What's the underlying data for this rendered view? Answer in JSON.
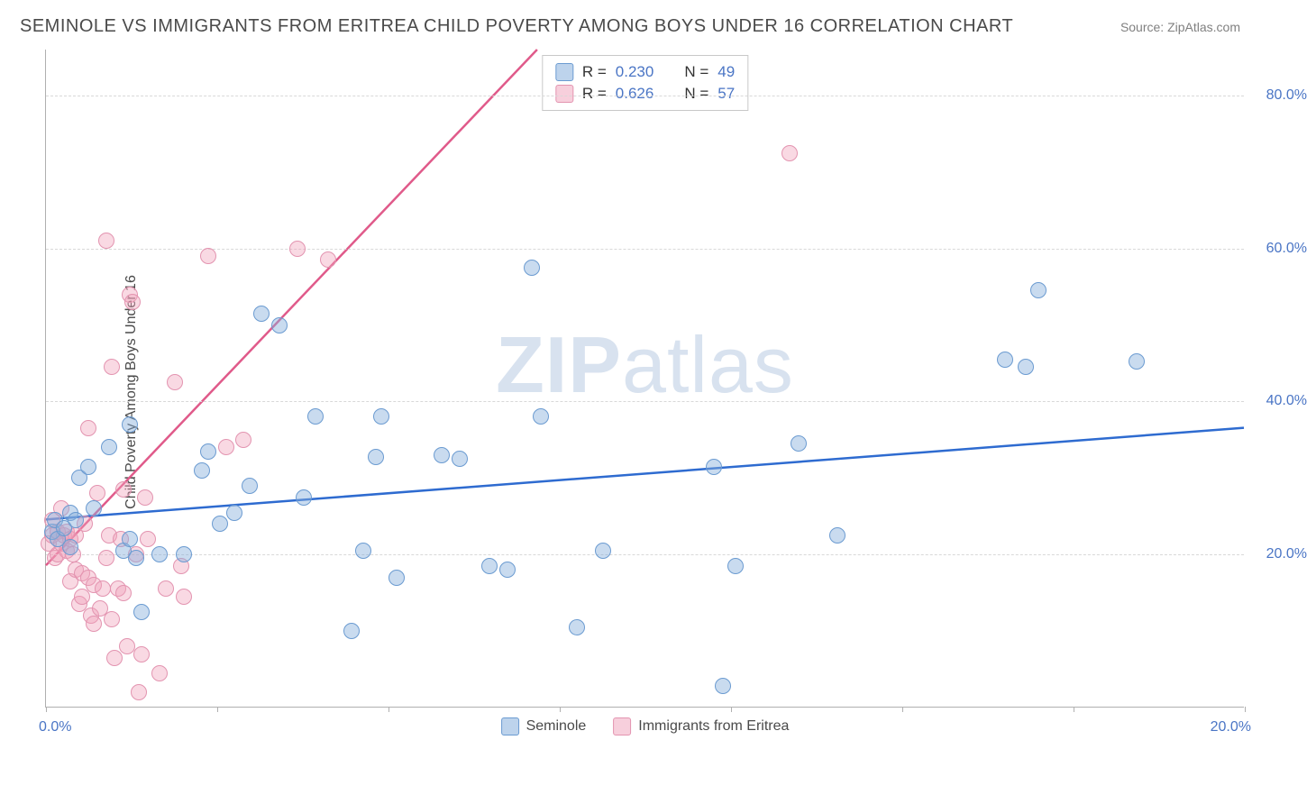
{
  "header": {
    "title": "SEMINOLE VS IMMIGRANTS FROM ERITREA CHILD POVERTY AMONG BOYS UNDER 16 CORRELATION CHART",
    "source": "Source: ZipAtlas.com"
  },
  "watermark": {
    "bold": "ZIP",
    "light": "atlas"
  },
  "chart": {
    "type": "scatter",
    "background_color": "#ffffff",
    "y_axis": {
      "title": "Child Poverty Among Boys Under 16",
      "min": 0,
      "max": 86,
      "ticks": [
        20,
        40,
        60,
        80
      ],
      "tick_labels": [
        "20.0%",
        "40.0%",
        "60.0%",
        "80.0%"
      ],
      "label_color": "#4a75c5",
      "label_fontsize": 16,
      "grid_color": "#d8d8d8"
    },
    "x_axis": {
      "min": 0,
      "max": 20,
      "left_label": "0.0%",
      "right_label": "20.0%",
      "tick_positions": [
        0,
        2.86,
        5.71,
        8.57,
        11.43,
        14.29,
        17.14,
        20
      ],
      "label_color": "#4a75c5",
      "label_fontsize": 16
    },
    "series": [
      {
        "name": "Seminole",
        "color_fill": "rgba(135,175,220,0.45)",
        "color_stroke": "#6b9bd1",
        "marker_size": 18,
        "trend": {
          "x1": 0,
          "y1": 24.5,
          "x2": 20,
          "y2": 36.5,
          "color": "#2e6bd0",
          "width": 2.5
        },
        "stats": {
          "R": "0.230",
          "N": "49"
        },
        "points": [
          [
            0.1,
            23
          ],
          [
            0.15,
            24.5
          ],
          [
            0.2,
            22
          ],
          [
            0.3,
            23.5
          ],
          [
            0.4,
            21
          ],
          [
            0.4,
            25.5
          ],
          [
            0.5,
            24.5
          ],
          [
            0.55,
            30
          ],
          [
            0.7,
            31.5
          ],
          [
            0.8,
            26
          ],
          [
            1.05,
            34
          ],
          [
            1.3,
            20.5
          ],
          [
            1.4,
            37
          ],
          [
            1.4,
            22
          ],
          [
            1.5,
            19.5
          ],
          [
            1.6,
            12.5
          ],
          [
            1.9,
            20
          ],
          [
            2.3,
            20
          ],
          [
            2.6,
            31
          ],
          [
            2.7,
            33.5
          ],
          [
            2.9,
            24
          ],
          [
            3.15,
            25.5
          ],
          [
            3.4,
            29
          ],
          [
            3.6,
            51.5
          ],
          [
            3.9,
            50
          ],
          [
            4.3,
            27.5
          ],
          [
            4.5,
            38
          ],
          [
            5.1,
            10
          ],
          [
            5.3,
            20.5
          ],
          [
            5.5,
            32.7
          ],
          [
            5.6,
            38
          ],
          [
            5.85,
            17
          ],
          [
            6.6,
            33
          ],
          [
            6.9,
            32.5
          ],
          [
            7.4,
            18.5
          ],
          [
            7.7,
            18
          ],
          [
            8.1,
            57.5
          ],
          [
            8.25,
            38
          ],
          [
            8.85,
            10.5
          ],
          [
            9.3,
            20.5
          ],
          [
            11.15,
            31.5
          ],
          [
            11.3,
            2.8
          ],
          [
            11.5,
            18.5
          ],
          [
            12.55,
            34.5
          ],
          [
            13.2,
            22.5
          ],
          [
            16,
            45.5
          ],
          [
            16.35,
            44.5
          ],
          [
            16.55,
            54.5
          ],
          [
            18.2,
            45.2
          ]
        ]
      },
      {
        "name": "Immigrants from Eritrea",
        "color_fill": "rgba(240,160,185,0.40)",
        "color_stroke": "#e394b0",
        "marker_size": 18,
        "trend": {
          "x1": 0,
          "y1": 18.5,
          "x2": 8.2,
          "y2": 86,
          "color": "#e05a8a",
          "width": 2.5
        },
        "stats": {
          "R": "0.626",
          "N": "57"
        },
        "points": [
          [
            0.05,
            21.5
          ],
          [
            0.1,
            22.5
          ],
          [
            0.1,
            24.5
          ],
          [
            0.15,
            19.5
          ],
          [
            0.2,
            23
          ],
          [
            0.2,
            20
          ],
          [
            0.25,
            26
          ],
          [
            0.25,
            21.5
          ],
          [
            0.3,
            22.5
          ],
          [
            0.35,
            23
          ],
          [
            0.35,
            20.5
          ],
          [
            0.4,
            16.5
          ],
          [
            0.4,
            22
          ],
          [
            0.45,
            20
          ],
          [
            0.5,
            22.5
          ],
          [
            0.5,
            18
          ],
          [
            0.55,
            13.5
          ],
          [
            0.6,
            17.5
          ],
          [
            0.6,
            14.5
          ],
          [
            0.65,
            24
          ],
          [
            0.7,
            36.5
          ],
          [
            0.7,
            17
          ],
          [
            0.75,
            12
          ],
          [
            0.8,
            11
          ],
          [
            0.8,
            16
          ],
          [
            0.85,
            28
          ],
          [
            0.9,
            13
          ],
          [
            0.95,
            15.5
          ],
          [
            1.0,
            61
          ],
          [
            1.0,
            19.5
          ],
          [
            1.05,
            22.5
          ],
          [
            1.1,
            44.5
          ],
          [
            1.1,
            11.5
          ],
          [
            1.15,
            6.5
          ],
          [
            1.2,
            15.5
          ],
          [
            1.25,
            22
          ],
          [
            1.3,
            28.5
          ],
          [
            1.3,
            15
          ],
          [
            1.35,
            8
          ],
          [
            1.4,
            54
          ],
          [
            1.45,
            53
          ],
          [
            1.5,
            20
          ],
          [
            1.55,
            2
          ],
          [
            1.6,
            7
          ],
          [
            1.65,
            27.5
          ],
          [
            1.7,
            22
          ],
          [
            1.9,
            4.5
          ],
          [
            2.0,
            15.5
          ],
          [
            2.15,
            42.5
          ],
          [
            2.25,
            18.5
          ],
          [
            2.3,
            14.5
          ],
          [
            2.7,
            59
          ],
          [
            3.0,
            34
          ],
          [
            3.3,
            35
          ],
          [
            4.2,
            60
          ],
          [
            4.7,
            58.5
          ],
          [
            12.4,
            72.5
          ]
        ]
      }
    ],
    "stats_legend": {
      "rows": [
        {
          "swatch": "blue",
          "r_label": "R =",
          "r_val": "0.230",
          "n_label": "N =",
          "n_val": "49"
        },
        {
          "swatch": "pink",
          "r_label": "R =",
          "r_val": "0.626",
          "n_label": "N =",
          "n_val": "57"
        }
      ]
    },
    "bottom_legend": {
      "items": [
        {
          "swatch": "blue",
          "label": "Seminole"
        },
        {
          "swatch": "pink",
          "label": "Immigrants from Eritrea"
        }
      ]
    }
  }
}
